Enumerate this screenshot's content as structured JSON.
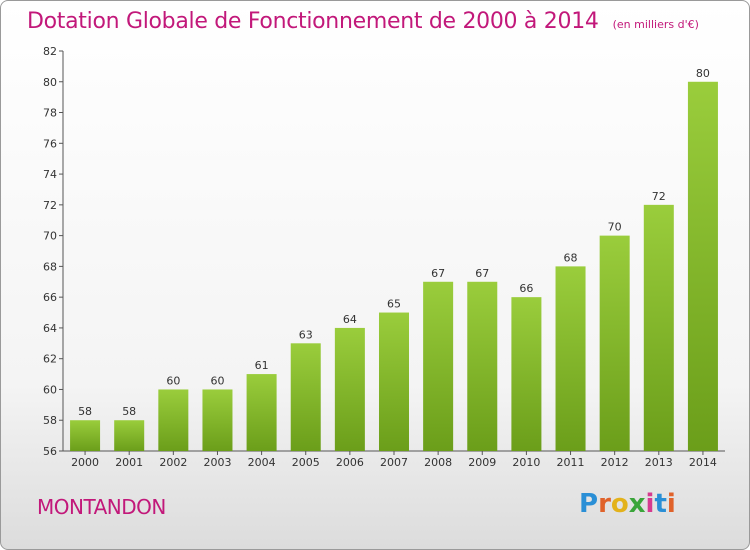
{
  "header": {
    "title": "Dotation Globale de Fonctionnement de 2000 à 2014",
    "unit": "(en milliers d'€)"
  },
  "footer": {
    "commune": "MONTANDON",
    "logo_letters": [
      "P",
      "r",
      "o",
      "x",
      "i",
      "t",
      "i"
    ]
  },
  "colors": {
    "bar_light": "#9acd3c",
    "bar_dark": "#6b9e1a",
    "title": "#c2187a"
  },
  "chart_data": {
    "type": "bar",
    "title": "Dotation Globale de Fonctionnement de 2000 à 2014",
    "subtitle": "(en milliers d'€)",
    "xlabel": "",
    "ylabel": "",
    "categories": [
      "2000",
      "2001",
      "2002",
      "2003",
      "2004",
      "2005",
      "2006",
      "2007",
      "2008",
      "2009",
      "2010",
      "2011",
      "2012",
      "2013",
      "2014"
    ],
    "values": [
      58,
      58,
      60,
      60,
      61,
      63,
      64,
      65,
      67,
      67,
      66,
      68,
      70,
      72,
      80
    ],
    "ylim": [
      56,
      82
    ],
    "yticks": [
      56,
      58,
      60,
      62,
      64,
      66,
      68,
      70,
      72,
      74,
      76,
      78,
      80,
      82
    ],
    "grid": false,
    "legend": "none"
  }
}
